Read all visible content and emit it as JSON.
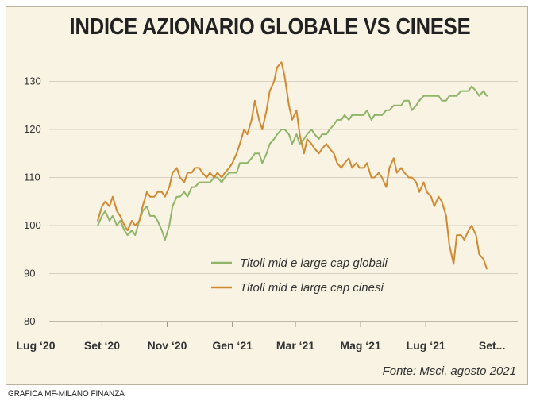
{
  "title": "INDICE AZIONARIO GLOBALE VS CINESE",
  "source": "Fonte: Msci, agosto 2021",
  "credit": "GRAFICA MF-MILANO FINANZA",
  "colors": {
    "global": "#8fb46a",
    "china": "#d08a33",
    "background": "#f8f3e2"
  },
  "chart_data": {
    "type": "line",
    "title": "INDICE AZIONARIO GLOBALE VS CINESE",
    "xlabel": "",
    "ylabel": "",
    "ylim": [
      80,
      135
    ],
    "yticks": [
      80,
      90,
      100,
      110,
      120,
      130
    ],
    "xlim": [
      "2020-07-01",
      "2021-09-05"
    ],
    "x_tick_labels": [
      {
        "label": "Lug ‘20",
        "date": "2020-07-01"
      },
      {
        "label": "Set ‘20",
        "date": "2020-09-01"
      },
      {
        "label": "Nov ‘20",
        "date": "2020-11-01"
      },
      {
        "label": "Gen ‘21",
        "date": "2021-01-01"
      },
      {
        "label": "Mar ‘21",
        "date": "2021-03-01"
      },
      {
        "label": "Mag ‘21",
        "date": "2021-05-01"
      },
      {
        "label": "Lug ‘21",
        "date": "2021-07-01"
      },
      {
        "label": "Set...",
        "date": "2021-09-01"
      }
    ],
    "grid": "horizontal",
    "legend_position": "lower-right",
    "series": [
      {
        "name": "Titoli mid e large cap globali",
        "color": "#8fb46a",
        "points": [
          [
            "2020-08-28",
            100
          ],
          [
            "2020-09-01",
            102
          ],
          [
            "2020-09-04",
            103
          ],
          [
            "2020-09-08",
            101
          ],
          [
            "2020-09-11",
            102
          ],
          [
            "2020-09-15",
            100
          ],
          [
            "2020-09-18",
            101
          ],
          [
            "2020-09-22",
            99
          ],
          [
            "2020-09-25",
            98
          ],
          [
            "2020-09-29",
            99
          ],
          [
            "2020-10-02",
            98
          ],
          [
            "2020-10-06",
            101
          ],
          [
            "2020-10-09",
            103
          ],
          [
            "2020-10-13",
            104
          ],
          [
            "2020-10-16",
            102
          ],
          [
            "2020-10-20",
            102
          ],
          [
            "2020-10-23",
            101
          ],
          [
            "2020-10-27",
            99
          ],
          [
            "2020-10-30",
            97
          ],
          [
            "2020-11-03",
            100
          ],
          [
            "2020-11-06",
            104
          ],
          [
            "2020-11-10",
            106
          ],
          [
            "2020-11-13",
            106
          ],
          [
            "2020-11-17",
            107
          ],
          [
            "2020-11-20",
            106
          ],
          [
            "2020-11-24",
            108
          ],
          [
            "2020-11-27",
            108
          ],
          [
            "2020-12-01",
            109
          ],
          [
            "2020-12-04",
            109
          ],
          [
            "2020-12-08",
            109
          ],
          [
            "2020-12-11",
            109
          ],
          [
            "2020-12-15",
            110
          ],
          [
            "2020-12-18",
            110
          ],
          [
            "2020-12-22",
            109
          ],
          [
            "2020-12-25",
            110
          ],
          [
            "2020-12-29",
            111
          ],
          [
            "2021-01-01",
            111
          ],
          [
            "2021-01-05",
            111
          ],
          [
            "2021-01-08",
            113
          ],
          [
            "2021-01-12",
            113
          ],
          [
            "2021-01-15",
            113
          ],
          [
            "2021-01-19",
            114
          ],
          [
            "2021-01-22",
            115
          ],
          [
            "2021-01-26",
            115
          ],
          [
            "2021-01-29",
            113
          ],
          [
            "2021-02-02",
            115
          ],
          [
            "2021-02-05",
            117
          ],
          [
            "2021-02-09",
            118
          ],
          [
            "2021-02-12",
            119
          ],
          [
            "2021-02-16",
            120
          ],
          [
            "2021-02-19",
            120
          ],
          [
            "2021-02-23",
            119
          ],
          [
            "2021-02-26",
            117
          ],
          [
            "2021-03-02",
            119
          ],
          [
            "2021-03-05",
            117
          ],
          [
            "2021-03-09",
            118
          ],
          [
            "2021-03-12",
            119
          ],
          [
            "2021-03-16",
            120
          ],
          [
            "2021-03-19",
            119
          ],
          [
            "2021-03-23",
            118
          ],
          [
            "2021-03-26",
            119
          ],
          [
            "2021-03-30",
            119
          ],
          [
            "2021-04-02",
            120
          ],
          [
            "2021-04-06",
            121
          ],
          [
            "2021-04-09",
            122
          ],
          [
            "2021-04-13",
            122
          ],
          [
            "2021-04-16",
            123
          ],
          [
            "2021-04-20",
            122
          ],
          [
            "2021-04-23",
            123
          ],
          [
            "2021-04-27",
            123
          ],
          [
            "2021-04-30",
            123
          ],
          [
            "2021-05-04",
            123
          ],
          [
            "2021-05-07",
            124
          ],
          [
            "2021-05-11",
            122
          ],
          [
            "2021-05-14",
            123
          ],
          [
            "2021-05-18",
            123
          ],
          [
            "2021-05-21",
            123
          ],
          [
            "2021-05-25",
            124
          ],
          [
            "2021-05-28",
            124
          ],
          [
            "2021-06-01",
            125
          ],
          [
            "2021-06-04",
            125
          ],
          [
            "2021-06-08",
            125
          ],
          [
            "2021-06-11",
            126
          ],
          [
            "2021-06-15",
            126
          ],
          [
            "2021-06-18",
            124
          ],
          [
            "2021-06-22",
            125
          ],
          [
            "2021-06-25",
            126
          ],
          [
            "2021-06-29",
            127
          ],
          [
            "2021-07-02",
            127
          ],
          [
            "2021-07-06",
            127
          ],
          [
            "2021-07-09",
            127
          ],
          [
            "2021-07-13",
            127
          ],
          [
            "2021-07-16",
            126
          ],
          [
            "2021-07-20",
            126
          ],
          [
            "2021-07-23",
            127
          ],
          [
            "2021-07-27",
            127
          ],
          [
            "2021-07-30",
            127
          ],
          [
            "2021-08-03",
            128
          ],
          [
            "2021-08-06",
            128
          ],
          [
            "2021-08-10",
            128
          ],
          [
            "2021-08-13",
            129
          ],
          [
            "2021-08-17",
            128
          ],
          [
            "2021-08-20",
            127
          ],
          [
            "2021-08-24",
            128
          ],
          [
            "2021-08-27",
            127
          ]
        ]
      },
      {
        "name": "Titoli mid e large cap cinesi",
        "color": "#d08a33",
        "points": [
          [
            "2020-08-28",
            101
          ],
          [
            "2020-09-01",
            104
          ],
          [
            "2020-09-04",
            105
          ],
          [
            "2020-09-08",
            104
          ],
          [
            "2020-09-11",
            106
          ],
          [
            "2020-09-15",
            103
          ],
          [
            "2020-09-18",
            102
          ],
          [
            "2020-09-22",
            100
          ],
          [
            "2020-09-25",
            99
          ],
          [
            "2020-09-29",
            101
          ],
          [
            "2020-10-02",
            100
          ],
          [
            "2020-10-06",
            101
          ],
          [
            "2020-10-09",
            104
          ],
          [
            "2020-10-13",
            107
          ],
          [
            "2020-10-16",
            106
          ],
          [
            "2020-10-20",
            106
          ],
          [
            "2020-10-23",
            107
          ],
          [
            "2020-10-27",
            107
          ],
          [
            "2020-10-30",
            106
          ],
          [
            "2020-11-03",
            108
          ],
          [
            "2020-11-06",
            111
          ],
          [
            "2020-11-10",
            112
          ],
          [
            "2020-11-13",
            110
          ],
          [
            "2020-11-17",
            109
          ],
          [
            "2020-11-20",
            111
          ],
          [
            "2020-11-24",
            111
          ],
          [
            "2020-11-27",
            112
          ],
          [
            "2020-12-01",
            112
          ],
          [
            "2020-12-04",
            111
          ],
          [
            "2020-12-08",
            110
          ],
          [
            "2020-12-11",
            111
          ],
          [
            "2020-12-15",
            110
          ],
          [
            "2020-12-18",
            111
          ],
          [
            "2020-12-22",
            110
          ],
          [
            "2020-12-25",
            111
          ],
          [
            "2020-12-29",
            112
          ],
          [
            "2021-01-01",
            113
          ],
          [
            "2021-01-05",
            115
          ],
          [
            "2021-01-08",
            117
          ],
          [
            "2021-01-12",
            120
          ],
          [
            "2021-01-15",
            119
          ],
          [
            "2021-01-19",
            122
          ],
          [
            "2021-01-22",
            126
          ],
          [
            "2021-01-26",
            122
          ],
          [
            "2021-01-29",
            120
          ],
          [
            "2021-02-02",
            124
          ],
          [
            "2021-02-05",
            128
          ],
          [
            "2021-02-09",
            130
          ],
          [
            "2021-02-12",
            133
          ],
          [
            "2021-02-16",
            134
          ],
          [
            "2021-02-19",
            131
          ],
          [
            "2021-02-23",
            125
          ],
          [
            "2021-02-26",
            122
          ],
          [
            "2021-03-02",
            124
          ],
          [
            "2021-03-05",
            119
          ],
          [
            "2021-03-09",
            115
          ],
          [
            "2021-03-12",
            118
          ],
          [
            "2021-03-16",
            117
          ],
          [
            "2021-03-19",
            116
          ],
          [
            "2021-03-23",
            115
          ],
          [
            "2021-03-26",
            116
          ],
          [
            "2021-03-30",
            117
          ],
          [
            "2021-04-02",
            116
          ],
          [
            "2021-04-06",
            115
          ],
          [
            "2021-04-09",
            113
          ],
          [
            "2021-04-13",
            112
          ],
          [
            "2021-04-16",
            113
          ],
          [
            "2021-04-20",
            114
          ],
          [
            "2021-04-23",
            112
          ],
          [
            "2021-04-27",
            113
          ],
          [
            "2021-04-30",
            112
          ],
          [
            "2021-05-04",
            112
          ],
          [
            "2021-05-07",
            113
          ],
          [
            "2021-05-11",
            110
          ],
          [
            "2021-05-14",
            110
          ],
          [
            "2021-05-18",
            111
          ],
          [
            "2021-05-21",
            110
          ],
          [
            "2021-05-25",
            108
          ],
          [
            "2021-05-28",
            112
          ],
          [
            "2021-06-01",
            114
          ],
          [
            "2021-06-04",
            111
          ],
          [
            "2021-06-08",
            112
          ],
          [
            "2021-06-11",
            111
          ],
          [
            "2021-06-15",
            110
          ],
          [
            "2021-06-18",
            110
          ],
          [
            "2021-06-22",
            109
          ],
          [
            "2021-06-25",
            107
          ],
          [
            "2021-06-29",
            109
          ],
          [
            "2021-07-02",
            107
          ],
          [
            "2021-07-06",
            106
          ],
          [
            "2021-07-09",
            104
          ],
          [
            "2021-07-13",
            106
          ],
          [
            "2021-07-16",
            105
          ],
          [
            "2021-07-20",
            102
          ],
          [
            "2021-07-23",
            96
          ],
          [
            "2021-07-27",
            92
          ],
          [
            "2021-07-30",
            98
          ],
          [
            "2021-08-03",
            98
          ],
          [
            "2021-08-06",
            97
          ],
          [
            "2021-08-10",
            99
          ],
          [
            "2021-08-13",
            100
          ],
          [
            "2021-08-17",
            98
          ],
          [
            "2021-08-20",
            94
          ],
          [
            "2021-08-24",
            93
          ],
          [
            "2021-08-27",
            91
          ]
        ]
      }
    ]
  }
}
